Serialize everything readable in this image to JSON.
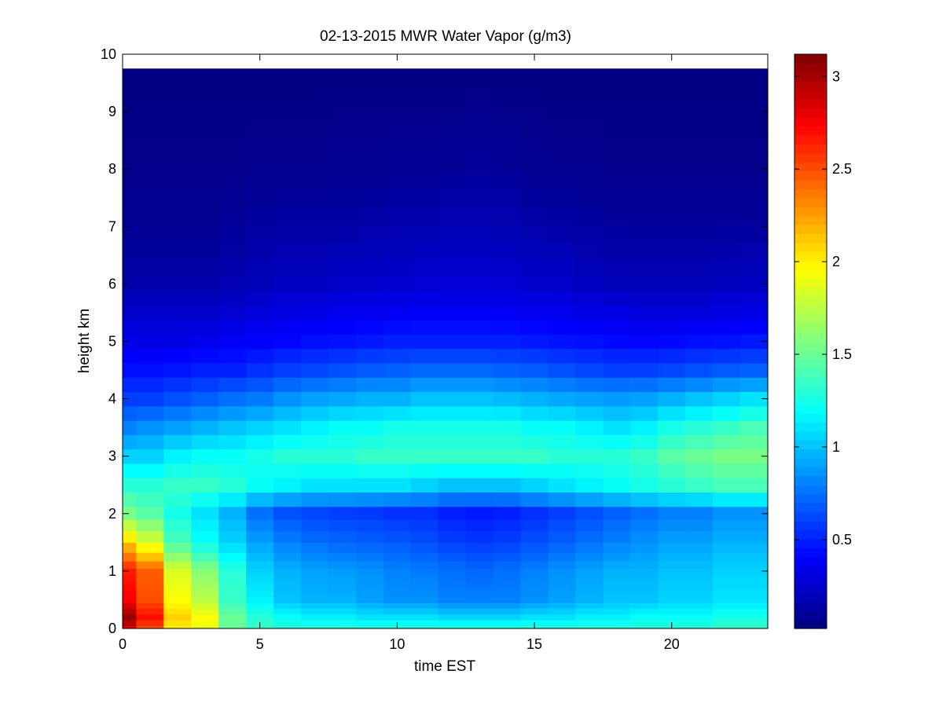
{
  "chart_data": {
    "type": "heatmap",
    "title": "02-13-2015 MWR Water Vapor (g/m3)",
    "xlabel": "time EST",
    "ylabel": "height km",
    "xlim": [
      0,
      23.5
    ],
    "ylim": [
      0,
      10
    ],
    "x_ticks": [
      "0",
      "5",
      "10",
      "15",
      "20"
    ],
    "y_ticks": [
      "0",
      "1",
      "2",
      "3",
      "4",
      "5",
      "6",
      "7",
      "8",
      "9",
      "10"
    ],
    "colorbar": {
      "colormap": "jet",
      "range": [
        0.02,
        3.12
      ],
      "ticks": [
        "0.5",
        "1",
        "1.5",
        "2",
        "2.5",
        "3"
      ]
    },
    "grid": false,
    "time_hours": [
      0,
      1,
      2,
      3,
      4,
      5,
      6,
      7,
      8,
      9,
      10,
      11,
      12,
      13,
      14,
      15,
      16,
      17,
      18,
      19,
      20,
      21,
      22,
      23
    ],
    "height_km": [
      0.0,
      0.1,
      0.2,
      0.3,
      0.4,
      0.5,
      0.6,
      0.7,
      0.8,
      0.9,
      1.0,
      1.1,
      1.25,
      1.4,
      1.6,
      1.8,
      2.0,
      2.25,
      2.5,
      2.75,
      3.0,
      3.25,
      3.5,
      3.75,
      4.0,
      4.25,
      4.5,
      4.75,
      5.0,
      5.25,
      5.5,
      5.75,
      6.0,
      6.3,
      6.6,
      6.9,
      7.2,
      7.5,
      7.8,
      8.1,
      8.4,
      8.7,
      9.0,
      9.3,
      9.6
    ],
    "profile_height_km": [
      0.0,
      0.2,
      0.5,
      1.0,
      1.5,
      2.0,
      2.5,
      3.0,
      3.5,
      4.0,
      4.5,
      5.0,
      5.5,
      6.0,
      7.0,
      8.0,
      9.7
    ],
    "water_vapor_profiles_gm3": [
      [
        2.85,
        3.05,
        2.75,
        2.65,
        2.1,
        1.55,
        1.3,
        1.05,
        0.8,
        0.6,
        0.45,
        0.35,
        0.25,
        0.15,
        0.08,
        0.05,
        0.03
      ],
      [
        2.5,
        2.7,
        2.5,
        2.45,
        1.85,
        1.45,
        1.3,
        1.05,
        0.85,
        0.6,
        0.45,
        0.33,
        0.25,
        0.15,
        0.08,
        0.05,
        0.03
      ],
      [
        2.0,
        2.1,
        1.95,
        1.85,
        1.4,
        1.25,
        1.35,
        1.15,
        0.9,
        0.65,
        0.47,
        0.33,
        0.25,
        0.15,
        0.08,
        0.05,
        0.03
      ],
      [
        1.9,
        1.95,
        1.75,
        1.6,
        1.2,
        1.1,
        1.35,
        1.2,
        0.95,
        0.7,
        0.5,
        0.35,
        0.25,
        0.15,
        0.08,
        0.05,
        0.03
      ],
      [
        1.5,
        1.5,
        1.35,
        1.3,
        1.05,
        0.95,
        1.3,
        1.2,
        1.0,
        0.75,
        0.5,
        0.38,
        0.27,
        0.17,
        0.1,
        0.05,
        0.03
      ],
      [
        1.35,
        1.3,
        1.15,
        1.05,
        0.9,
        0.75,
        1.2,
        1.25,
        1.05,
        0.78,
        0.55,
        0.4,
        0.3,
        0.2,
        0.12,
        0.06,
        0.03
      ],
      [
        1.3,
        1.2,
        1.0,
        0.95,
        0.8,
        0.65,
        1.15,
        1.3,
        1.1,
        0.85,
        0.6,
        0.42,
        0.32,
        0.22,
        0.13,
        0.06,
        0.03
      ],
      [
        1.3,
        1.15,
        0.95,
        0.9,
        0.75,
        0.62,
        1.1,
        1.3,
        1.15,
        0.9,
        0.62,
        0.45,
        0.33,
        0.22,
        0.13,
        0.06,
        0.03
      ],
      [
        1.3,
        1.15,
        0.95,
        0.88,
        0.72,
        0.6,
        1.1,
        1.3,
        1.2,
        0.92,
        0.65,
        0.46,
        0.35,
        0.24,
        0.14,
        0.07,
        0.03
      ],
      [
        1.3,
        1.1,
        0.9,
        0.85,
        0.7,
        0.58,
        1.1,
        1.35,
        1.2,
        0.95,
        0.68,
        0.48,
        0.36,
        0.25,
        0.15,
        0.07,
        0.03
      ],
      [
        1.3,
        1.1,
        0.85,
        0.8,
        0.68,
        0.55,
        1.1,
        1.35,
        1.25,
        0.95,
        0.7,
        0.5,
        0.37,
        0.26,
        0.16,
        0.08,
        0.03
      ],
      [
        1.3,
        1.1,
        0.85,
        0.78,
        0.65,
        0.55,
        1.05,
        1.35,
        1.25,
        1.0,
        0.72,
        0.5,
        0.38,
        0.27,
        0.17,
        0.08,
        0.03
      ],
      [
        1.3,
        1.05,
        0.8,
        0.75,
        0.6,
        0.5,
        1.0,
        1.35,
        1.25,
        1.0,
        0.72,
        0.5,
        0.38,
        0.28,
        0.18,
        0.09,
        0.03
      ],
      [
        1.3,
        1.05,
        0.8,
        0.72,
        0.58,
        0.48,
        1.0,
        1.35,
        1.25,
        1.0,
        0.72,
        0.5,
        0.38,
        0.28,
        0.18,
        0.1,
        0.03
      ],
      [
        1.3,
        1.05,
        0.8,
        0.75,
        0.6,
        0.5,
        1.0,
        1.35,
        1.25,
        0.98,
        0.7,
        0.5,
        0.37,
        0.27,
        0.17,
        0.09,
        0.03
      ],
      [
        1.3,
        1.1,
        0.85,
        0.8,
        0.65,
        0.55,
        1.05,
        1.35,
        1.2,
        0.95,
        0.68,
        0.48,
        0.36,
        0.25,
        0.15,
        0.07,
        0.03
      ],
      [
        1.3,
        1.1,
        0.9,
        0.85,
        0.7,
        0.6,
        1.1,
        1.3,
        1.2,
        0.92,
        0.65,
        0.46,
        0.35,
        0.24,
        0.14,
        0.06,
        0.03
      ],
      [
        1.3,
        1.15,
        0.95,
        0.9,
        0.75,
        0.65,
        1.15,
        1.3,
        1.15,
        0.9,
        0.62,
        0.45,
        0.33,
        0.22,
        0.12,
        0.06,
        0.03
      ],
      [
        1.3,
        1.15,
        1.0,
        0.95,
        0.8,
        0.7,
        1.2,
        1.3,
        1.1,
        0.88,
        0.6,
        0.43,
        0.32,
        0.2,
        0.11,
        0.05,
        0.03
      ],
      [
        1.3,
        1.2,
        1.0,
        0.95,
        0.85,
        0.75,
        1.25,
        1.35,
        1.15,
        0.9,
        0.6,
        0.42,
        0.3,
        0.2,
        0.1,
        0.05,
        0.03
      ],
      [
        1.3,
        1.2,
        1.05,
        1.0,
        0.9,
        0.8,
        1.3,
        1.45,
        1.25,
        0.95,
        0.62,
        0.43,
        0.3,
        0.2,
        0.1,
        0.05,
        0.03
      ],
      [
        1.3,
        1.2,
        1.05,
        1.0,
        0.9,
        0.8,
        1.35,
        1.5,
        1.3,
        1.0,
        0.65,
        0.45,
        0.3,
        0.2,
        0.1,
        0.05,
        0.03
      ],
      [
        1.35,
        1.25,
        1.1,
        1.05,
        0.95,
        0.85,
        1.4,
        1.55,
        1.35,
        1.05,
        0.68,
        0.46,
        0.32,
        0.21,
        0.11,
        0.05,
        0.03
      ],
      [
        1.35,
        1.25,
        1.1,
        1.05,
        0.95,
        0.85,
        1.4,
        1.55,
        1.4,
        1.1,
        0.7,
        0.48,
        0.33,
        0.22,
        0.11,
        0.05,
        0.03
      ]
    ]
  }
}
